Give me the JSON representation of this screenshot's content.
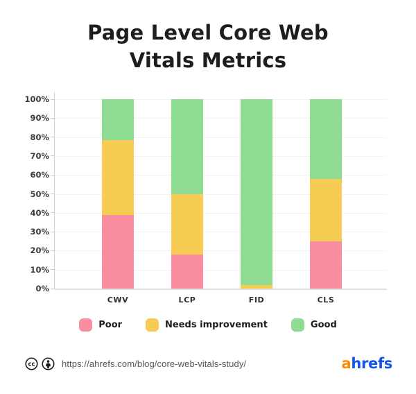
{
  "title": {
    "line1": "Page Level Core Web",
    "line2": "Vitals Metrics"
  },
  "chart_data": {
    "type": "bar",
    "stacked": true,
    "title": "Page Level Core Web Vitals Metrics",
    "categories": [
      "CWV",
      "LCP",
      "FID",
      "CLS"
    ],
    "series": [
      {
        "name": "Poor",
        "color": "#FB8DA1",
        "values": [
          39,
          18,
          0,
          25
        ]
      },
      {
        "name": "Needs improvement",
        "color": "#F6CC52",
        "values": [
          39.5,
          32,
          2,
          33
        ]
      },
      {
        "name": "Good",
        "color": "#8FDB92",
        "values": [
          21.5,
          50,
          98,
          42
        ]
      }
    ],
    "xlabel": "",
    "ylabel": "",
    "ylim": [
      0,
      100
    ],
    "y_ticks": [
      "0%",
      "10%",
      "20%",
      "30%",
      "40%",
      "50%",
      "60%",
      "70%",
      "80%",
      "90%",
      "100%"
    ],
    "grid": true,
    "legend_position": "bottom"
  },
  "legend": {
    "items": [
      {
        "label": "Poor",
        "color": "#FB8DA1"
      },
      {
        "label": "Needs improvement",
        "color": "#F6CC52"
      },
      {
        "label": "Good",
        "color": "#8FDB92"
      }
    ]
  },
  "footer": {
    "license_icons": [
      "creative-commons-icon",
      "attribution-icon"
    ],
    "url": "https://ahrefs.com/blog/core-web-vitals-study/",
    "logo": {
      "text_orange": "a",
      "text_blue": "hrefs",
      "orange": "#FF8A00",
      "blue": "#1355E9"
    }
  }
}
